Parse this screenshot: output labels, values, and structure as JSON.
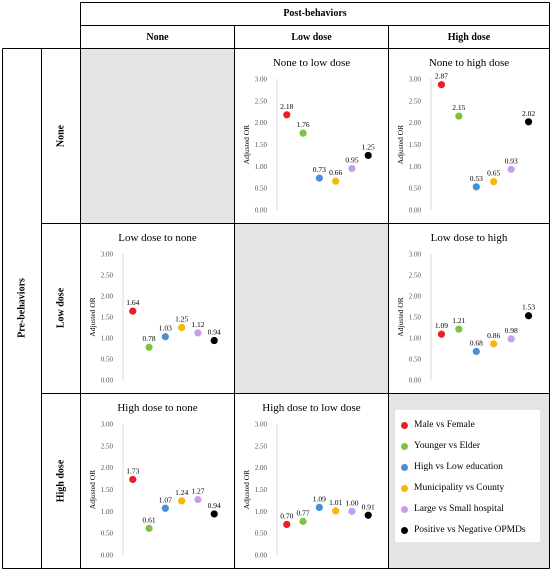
{
  "header": {
    "post_label": "Post-behaviors",
    "columns": [
      "None",
      "Low dose",
      "High dose"
    ]
  },
  "rows": {
    "pre_label": "Pre-behaviors",
    "labels": [
      "None",
      "Low dose",
      "High dose"
    ]
  },
  "colors": {
    "male_vs_female": "#ee1c25",
    "younger_vs_elder": "#7dc242",
    "education": "#4a8fd1",
    "municipality": "#f5b70d",
    "hospital": "#c79ee9",
    "opmd": "#000000"
  },
  "legend": [
    {
      "label": "Male vs Female",
      "color": "#ee1c25"
    },
    {
      "label": "Younger vs Elder",
      "color": "#7dc242"
    },
    {
      "label": "High vs Low education",
      "color": "#4a8fd1"
    },
    {
      "label": "Municipality vs County",
      "color": "#f5b70d"
    },
    {
      "label": "Large vs Small hospital",
      "color": "#c79ee9"
    },
    {
      "label": "Positive vs Negative OPMDs",
      "color": "#000000"
    }
  ],
  "chart_data": [
    {
      "type": "scatter",
      "title": "None to low dose",
      "row": 0,
      "col": 1,
      "ylabel": "Adjusted OR",
      "ylim": [
        0,
        3
      ],
      "yticks": [
        "0.00",
        "0.50",
        "1.00",
        "1.50",
        "2.00",
        "2.50",
        "3.00"
      ],
      "values": [
        2.18,
        1.76,
        0.73,
        0.66,
        0.95,
        1.25
      ],
      "labels": [
        "2.18",
        "1.76",
        "0.73",
        "0.66",
        "0.95",
        "1.25"
      ]
    },
    {
      "type": "scatter",
      "title": "None to high dose",
      "row": 0,
      "col": 2,
      "ylabel": "Adjusted OR",
      "ylim": [
        0,
        3
      ],
      "yticks": [
        "0.00",
        "0.50",
        "1.00",
        "1.50",
        "2.00",
        "2.50",
        "3.00"
      ],
      "values": [
        2.87,
        2.15,
        0.53,
        0.65,
        0.93,
        2.02
      ],
      "labels": [
        "2.87",
        "2.15",
        "0.53",
        "0.65",
        "0.93",
        "2.02"
      ]
    },
    {
      "type": "scatter",
      "title": "Low dose to none",
      "row": 1,
      "col": 0,
      "ylabel": "Adjusted OR",
      "ylim": [
        0,
        3
      ],
      "yticks": [
        "0.00",
        "0.50",
        "1.00",
        "1.50",
        "2.00",
        "2.50",
        "3.00"
      ],
      "values": [
        1.64,
        0.78,
        1.03,
        1.25,
        1.12,
        0.94
      ],
      "labels": [
        "1.64",
        "0.78",
        "1.03",
        "1.25",
        "1.12",
        "0.94"
      ]
    },
    {
      "type": "scatter",
      "title": "Low dose to high",
      "row": 1,
      "col": 2,
      "ylabel": "Adjusted OR",
      "ylim": [
        0,
        3
      ],
      "yticks": [
        "0.00",
        "0.50",
        "1.00",
        "1.50",
        "2.00",
        "2.50",
        "3.00"
      ],
      "values": [
        1.09,
        1.21,
        0.68,
        0.86,
        0.98,
        1.53
      ],
      "labels": [
        "1.09",
        "1.21",
        "0.68",
        "0.86",
        "0.98",
        "1.53"
      ]
    },
    {
      "type": "scatter",
      "title": "High dose to none",
      "row": 2,
      "col": 0,
      "ylabel": "Adjusted OR",
      "ylim": [
        0,
        3
      ],
      "yticks": [
        "0.00",
        "0.50",
        "1.00",
        "1.50",
        "2.00",
        "2.50",
        "3.00"
      ],
      "values": [
        1.73,
        0.61,
        1.07,
        1.24,
        1.27,
        0.94
      ],
      "labels": [
        "1.73",
        "0.61",
        "1.07",
        "1.24",
        "1.27",
        "0.94"
      ]
    },
    {
      "type": "scatter",
      "title": "High dose to low dose",
      "row": 2,
      "col": 1,
      "ylabel": "Adjusted OR",
      "ylim": [
        0,
        3
      ],
      "yticks": [
        "0.00",
        "0.50",
        "1.00",
        "1.50",
        "2.00",
        "2.50",
        "3.00"
      ],
      "values": [
        0.7,
        0.77,
        1.09,
        1.01,
        1.0,
        0.91
      ],
      "labels": [
        "0.70",
        "0.77",
        "1.09",
        "1.01",
        "1.00",
        "0.91"
      ]
    }
  ]
}
